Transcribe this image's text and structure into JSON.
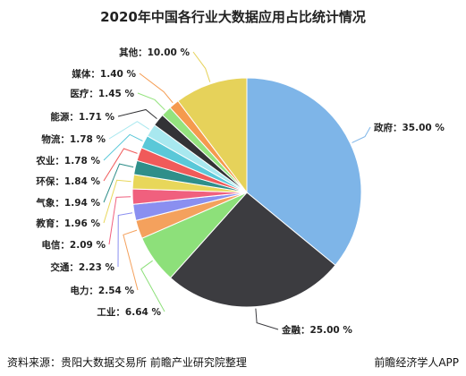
{
  "chart_data": {
    "type": "pie",
    "title": "2020年中国各行业大数据应用占比统计情况",
    "slices": [
      {
        "label": "政府",
        "value": 35.0,
        "display": "35.00 %",
        "color": "#7eb5e8"
      },
      {
        "label": "金融",
        "value": 25.0,
        "display": "25.00 %",
        "color": "#3c3c40"
      },
      {
        "label": "工业",
        "value": 6.64,
        "display": "6.64 %",
        "color": "#8de07a"
      },
      {
        "label": "电力",
        "value": 2.54,
        "display": "2.54 %",
        "color": "#f4a15d"
      },
      {
        "label": "交通",
        "value": 2.23,
        "display": "2.23 %",
        "color": "#8a8ff0"
      },
      {
        "label": "电信",
        "value": 2.09,
        "display": "2.09 %",
        "color": "#f0607e"
      },
      {
        "label": "教育",
        "value": 1.96,
        "display": "1.96 %",
        "color": "#e8d75a"
      },
      {
        "label": "气象",
        "value": 1.94,
        "display": "1.94 %",
        "color": "#2f8f8a"
      },
      {
        "label": "环保",
        "value": 1.84,
        "display": "1.84 %",
        "color": "#f05a5a"
      },
      {
        "label": "农业",
        "value": 1.78,
        "display": "1.78 %",
        "color": "#5ac8d8"
      },
      {
        "label": "物流",
        "value": 1.78,
        "display": "1.78 %",
        "color": "#a8e8ef"
      },
      {
        "label": "能源",
        "value": 1.71,
        "display": "1.71 %",
        "color": "#333336"
      },
      {
        "label": "医疗",
        "value": 1.45,
        "display": "1.45 %",
        "color": "#94e37e"
      },
      {
        "label": "媒体",
        "value": 1.4,
        "display": "1.40 %",
        "color": "#f59a4e"
      },
      {
        "label": "其他",
        "value": 10.0,
        "display": "10.00 %",
        "color": "#e6d25a"
      }
    ]
  },
  "footer": {
    "source": "资料来源：贵阳大数据交易所 前瞻产业研究院整理",
    "app": "前瞻经济学人APP"
  }
}
